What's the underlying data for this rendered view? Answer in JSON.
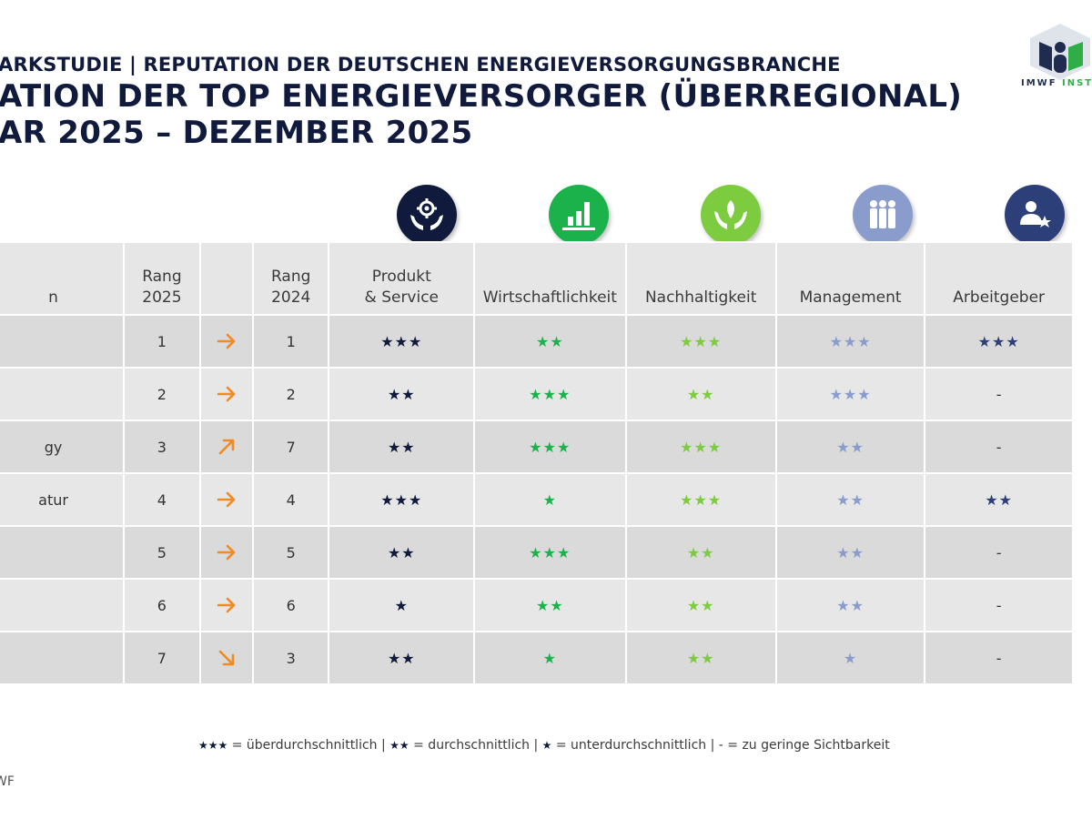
{
  "title": {
    "line1": "ARKSTUDIE | REPUTATION DER DEUTSCHEN ENERGIEVERSORGUNGSBRANCHE",
    "line2": "ATION DER TOP ENERGIEVERSORGER (ÜBERREGIONAL)",
    "line3": "AR 2025 – DEZEMBER 2025"
  },
  "logo": {
    "text_a": "IMWF ",
    "text_b": "INSTIT"
  },
  "colors": {
    "navy": "#0f1a3c",
    "green": "#1bb24b",
    "lightgreen": "#7dcb3f",
    "lavender": "#8a9ccc",
    "steel": "#2c3f78",
    "arrow": "#f08a24",
    "row_dark": "#dadada",
    "row_light": "#e7e7e7"
  },
  "table": {
    "headers": {
      "name": "n",
      "rank2025": "Rang 2025",
      "rank2025_l1": "Rang",
      "rank2025_l2": "2025",
      "rank2024_l1": "Rang",
      "rank2024_l2": "2024",
      "product_l1": "Produkt",
      "product_l2": "& Service",
      "economy": "Wirtschaftlichkeit",
      "sustainability": "Nachhaltigkeit",
      "management": "Management",
      "employer": "Arbeitgeber"
    },
    "category_icons": [
      {
        "name": "gear-hands-icon",
        "color": "#0f1a3c"
      },
      {
        "name": "bar-chart-icon",
        "color": "#1bb24b"
      },
      {
        "name": "leaf-hands-icon",
        "color": "#7dcb3f"
      },
      {
        "name": "people-icon",
        "color": "#8a9ccc"
      },
      {
        "name": "employee-star-icon",
        "color": "#2c3f78"
      }
    ],
    "rows": [
      {
        "name": "",
        "rank2025": "1",
        "trend": "right",
        "rank2024": "1",
        "product": "★★★",
        "economy": "★★",
        "sustainability": "★★★",
        "management": "★★★",
        "employer": "★★★"
      },
      {
        "name": "",
        "rank2025": "2",
        "trend": "right",
        "rank2024": "2",
        "product": "★★",
        "economy": "★★★",
        "sustainability": "★★",
        "management": "★★★",
        "employer": "-"
      },
      {
        "name": "gy",
        "rank2025": "3",
        "trend": "up-right",
        "rank2024": "7",
        "product": "★★",
        "economy": "★★★",
        "sustainability": "★★★",
        "management": "★★",
        "employer": "-"
      },
      {
        "name": "atur",
        "rank2025": "4",
        "trend": "right",
        "rank2024": "4",
        "product": "★★★",
        "economy": "★",
        "sustainability": "★★★",
        "management": "★★",
        "employer": "★★"
      },
      {
        "name": "",
        "rank2025": "5",
        "trend": "right",
        "rank2024": "5",
        "product": "★★",
        "economy": "★★★",
        "sustainability": "★★",
        "management": "★★",
        "employer": "-"
      },
      {
        "name": "",
        "rank2025": "6",
        "trend": "right",
        "rank2024": "6",
        "product": "★",
        "economy": "★★",
        "sustainability": "★★",
        "management": "★★",
        "employer": "-"
      },
      {
        "name": "",
        "rank2025": "7",
        "trend": "down-right",
        "rank2024": "3",
        "product": "★★",
        "economy": "★",
        "sustainability": "★★",
        "management": "★",
        "employer": "-"
      }
    ]
  },
  "legend": {
    "s3": "★★★",
    "t3": " = überdurchschnittlich | ",
    "s2": "★★",
    "t2": " = durchschnittlich | ",
    "s1": "★",
    "t1": " = unterdurchschnittlich | - = zu geringe Sichtbarkeit"
  },
  "source": "WF"
}
